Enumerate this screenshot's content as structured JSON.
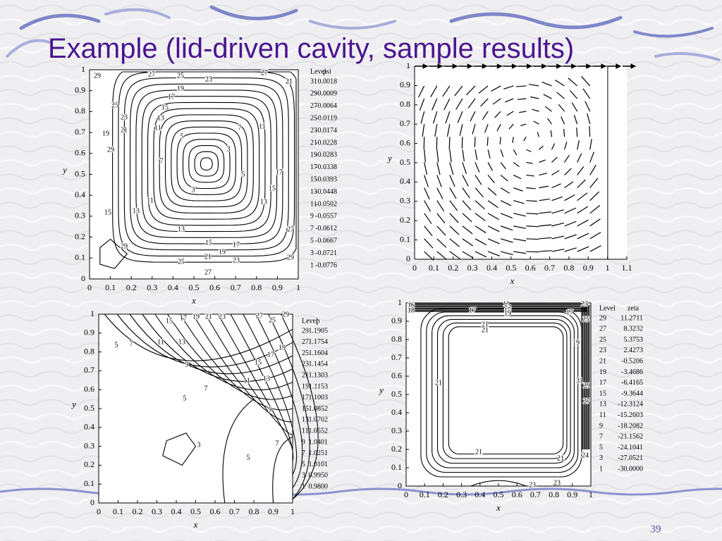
{
  "title": "Example (lid-driven cavity, sample results)",
  "page_number": "39",
  "panels": [
    {
      "xlabel": "x",
      "ylabel": "y",
      "xlim": [
        0,
        1
      ],
      "ylim": [
        0,
        1
      ],
      "xticks": [
        0,
        0.1,
        0.2,
        0.3,
        0.4,
        0.5,
        0.6,
        0.7,
        0.8,
        0.9,
        1
      ],
      "yticks": [
        0,
        0.1,
        0.2,
        0.3,
        0.4,
        0.5,
        0.6,
        0.7,
        0.8,
        0.9,
        1
      ],
      "legend": {
        "header": [
          "Level",
          "psi"
        ],
        "rows": [
          [
            "31",
            "0.0018"
          ],
          [
            "29",
            "-0.0009"
          ],
          [
            "27",
            "-0.0064"
          ],
          [
            "25",
            "-0.0119"
          ],
          [
            "23",
            "-0.0174"
          ],
          [
            "21",
            "-0.0228"
          ],
          [
            "19",
            "-0.0283"
          ],
          [
            "17",
            "-0.0338"
          ],
          [
            "15",
            "-0.0393"
          ],
          [
            "13",
            "-0.0448"
          ],
          [
            "11",
            "-0.0502"
          ],
          [
            "9",
            "-0.0557"
          ],
          [
            "7",
            "-0.0612"
          ],
          [
            "5",
            "-0.0667"
          ],
          [
            "3",
            "-0.0721"
          ],
          [
            "1",
            "-0.0776"
          ]
        ]
      },
      "contour_labels": [
        "29",
        "27",
        "25",
        "23",
        "27",
        "21",
        "19",
        "17",
        "15",
        "13",
        "11",
        "7",
        "5",
        "3",
        "3",
        "5",
        "7",
        "11",
        "13",
        "15",
        "17",
        "19",
        "21",
        "23",
        "29",
        "25",
        "27",
        "21",
        "19",
        "17",
        "15",
        "13",
        "23",
        "29",
        "27",
        "25",
        "15",
        "13",
        "11",
        "29"
      ]
    },
    {
      "xlabel": "x",
      "ylabel": "y",
      "xlim": [
        0,
        1.1
      ],
      "ylim": [
        0,
        1
      ],
      "xticks": [
        0,
        0.1,
        0.2,
        0.3,
        0.4,
        0.5,
        0.6,
        0.7,
        0.8,
        0.9,
        1,
        1.1
      ],
      "yticks": [
        0,
        0.1,
        0.2,
        0.3,
        0.4,
        0.5,
        0.6,
        0.7,
        0.8,
        0.9,
        1
      ]
    },
    {
      "xlabel": "x",
      "ylabel": "y",
      "xlim": [
        0,
        1
      ],
      "ylim": [
        0,
        1
      ],
      "xticks": [
        0,
        0.1,
        0.2,
        0.3,
        0.4,
        0.5,
        0.6,
        0.7,
        0.8,
        0.9,
        1
      ],
      "yticks": [
        0,
        0.1,
        0.2,
        0.3,
        0.4,
        0.5,
        0.6,
        0.7,
        0.8,
        0.9,
        1
      ],
      "legend": {
        "header": [
          "Level",
          "p"
        ],
        "rows": [
          [
            "29",
            "1.1905"
          ],
          [
            "27",
            "1.1754"
          ],
          [
            "25",
            "1.1604"
          ],
          [
            "23",
            "1.1454"
          ],
          [
            "21",
            "1.1303"
          ],
          [
            "19",
            "1.1153"
          ],
          [
            "17",
            "1.1003"
          ],
          [
            "15",
            "1.0852"
          ],
          [
            "13",
            "1.0702"
          ],
          [
            "11",
            "1.0552"
          ],
          [
            "9",
            "1.0401"
          ],
          [
            "7",
            "1.0251"
          ],
          [
            "5",
            "1.0101"
          ],
          [
            "3",
            "0.9950"
          ],
          [
            "1",
            "0.9800"
          ]
        ]
      },
      "contour_labels": [
        "15",
        "17",
        "19",
        "21",
        "23",
        "27",
        "25",
        "29",
        "11",
        "13",
        "9",
        "7",
        "5",
        "5",
        "7",
        "19",
        "17",
        "15",
        "13",
        "11",
        "9",
        "7",
        "5",
        "3"
      ]
    },
    {
      "xlabel": "x",
      "ylabel": "y",
      "xlim": [
        0,
        1
      ],
      "ylim": [
        0,
        1
      ],
      "xticks": [
        0,
        0.1,
        0.2,
        0.3,
        0.4,
        0.5,
        0.6,
        0.7,
        0.8,
        0.9,
        1
      ],
      "yticks": [
        0,
        0.1,
        0.2,
        0.3,
        0.4,
        0.5,
        0.6,
        0.7,
        0.8,
        0.9,
        1
      ],
      "legend": {
        "header": [
          "Level",
          "zeta"
        ],
        "rows": [
          [
            "29",
            "11.2711"
          ],
          [
            "27",
            "8.3232"
          ],
          [
            "25",
            "5.3753"
          ],
          [
            "23",
            "2.4273"
          ],
          [
            "21",
            "-0.5206"
          ],
          [
            "19",
            "-3.4686"
          ],
          [
            "17",
            "-6.4165"
          ],
          [
            "15",
            "-9.3644"
          ],
          [
            "13",
            "-12.3124"
          ],
          [
            "11",
            "-15.2603"
          ],
          [
            "9",
            "-18.2082"
          ],
          [
            "7",
            "-21.1562"
          ],
          [
            "5",
            "-24.1041"
          ],
          [
            "3",
            "-27.0521"
          ],
          [
            "1",
            "-30.0000"
          ]
        ]
      },
      "contour_labels": [
        "16",
        "18",
        "17",
        "11",
        "13",
        "15",
        "19",
        "17",
        "23",
        "25",
        "21",
        "21",
        "19",
        "21",
        "21",
        "21",
        "24",
        "31",
        "27",
        "29",
        "23",
        "23"
      ]
    }
  ]
}
